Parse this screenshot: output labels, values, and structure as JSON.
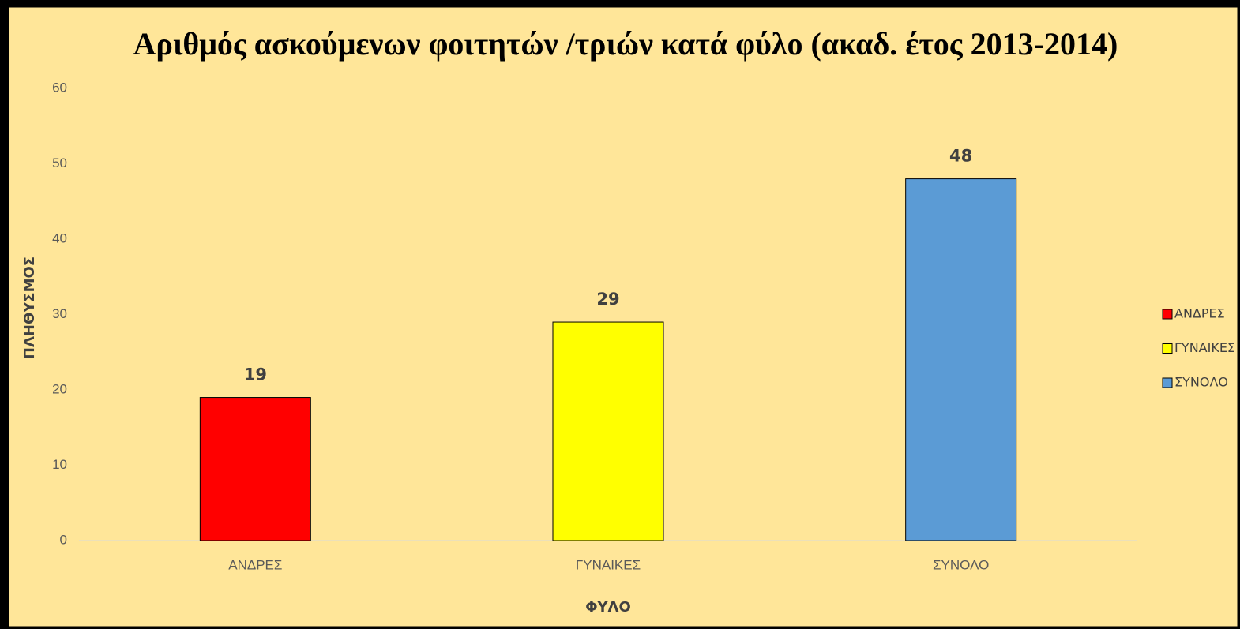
{
  "chart_data": {
    "type": "bar",
    "title": "Αριθμός ασκούμενων φοιτητών /τριών κατά φύλο (ακαδ. έτος 2013-2014)",
    "x_label": "ΦΥΛΟ",
    "y_label": "ΠΛΗΘΥΣΜΟΣ",
    "categories": [
      "ΑΝΔΡΕΣ",
      "ΓΥΝΑΙΚΕΣ",
      "ΣΥΝΟΛΟ"
    ],
    "values": [
      19,
      29,
      48
    ],
    "colors": [
      "#ff0000",
      "#ffff00",
      "#5b9bd5"
    ],
    "ylim": [
      0,
      60
    ],
    "yticks": [
      0,
      10,
      20,
      30,
      40,
      50,
      60
    ],
    "grid": false,
    "legend": "right"
  }
}
